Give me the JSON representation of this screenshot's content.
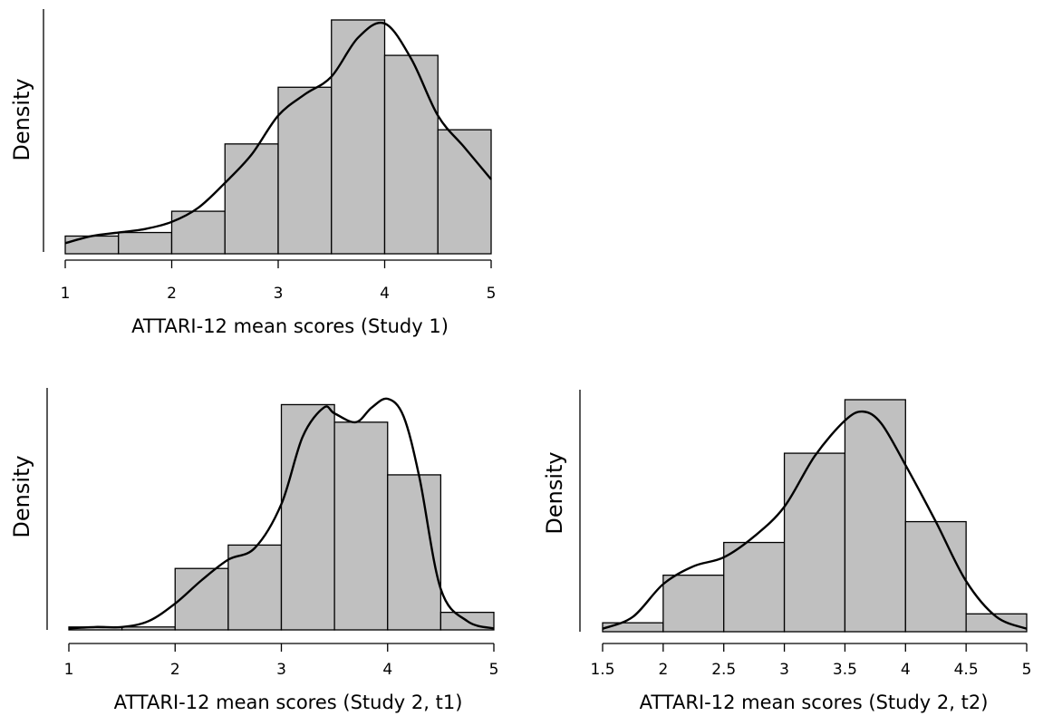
{
  "chart_data": [
    {
      "type": "bar",
      "title": "",
      "xlabel": "ATTARI-12 mean scores (Study 1)",
      "ylabel": "Density",
      "x_ticks": [
        "1",
        "2",
        "3",
        "4",
        "5"
      ],
      "tick_values": [
        1,
        2,
        3,
        4,
        5
      ],
      "xlim": [
        1,
        5
      ],
      "ylim": [
        0,
        0.7
      ],
      "bin_edges": [
        1,
        1.5,
        2,
        2.5,
        3,
        3.5,
        4,
        4.5,
        5
      ],
      "values": [
        0.05,
        0.06,
        0.12,
        0.31,
        0.47,
        0.66,
        0.56,
        0.35
      ],
      "density_x": [
        1.0,
        1.25,
        1.5,
        1.75,
        2.0,
        2.25,
        2.5,
        2.75,
        3.0,
        3.25,
        3.5,
        3.75,
        4.0,
        4.25,
        4.5,
        4.75,
        5.0
      ],
      "density_y": [
        0.03,
        0.05,
        0.06,
        0.07,
        0.09,
        0.13,
        0.2,
        0.28,
        0.39,
        0.45,
        0.5,
        0.61,
        0.65,
        0.55,
        0.39,
        0.3,
        0.21
      ],
      "grid": false
    },
    {
      "type": "bar",
      "title": "",
      "xlabel": "ATTARI-12 mean scores (Study 2, t1)",
      "ylabel": "Density",
      "x_ticks": [
        "1",
        "2",
        "3",
        "4",
        "5"
      ],
      "tick_values": [
        1,
        2,
        3,
        4,
        5
      ],
      "xlim": [
        1,
        5
      ],
      "ylim": [
        0,
        0.85
      ],
      "bin_edges": [
        1,
        1.5,
        2,
        2.5,
        3,
        3.5,
        4,
        4.5,
        5
      ],
      "values": [
        0.01,
        0.01,
        0.21,
        0.29,
        0.77,
        0.71,
        0.53,
        0.06
      ],
      "density_x": [
        1.0,
        1.25,
        1.5,
        1.75,
        2.0,
        2.25,
        2.5,
        2.75,
        3.0,
        3.2,
        3.4,
        3.5,
        3.7,
        3.85,
        4.0,
        4.15,
        4.3,
        4.5,
        4.75,
        5.0
      ],
      "density_y": [
        0.005,
        0.01,
        0.01,
        0.03,
        0.09,
        0.17,
        0.24,
        0.28,
        0.43,
        0.66,
        0.76,
        0.74,
        0.71,
        0.76,
        0.79,
        0.73,
        0.52,
        0.14,
        0.03,
        0.005
      ],
      "grid": false
    },
    {
      "type": "bar",
      "title": "",
      "xlabel": "ATTARI-12 mean scores (Study 2, t2)",
      "ylabel": "Density",
      "x_ticks": [
        "1.5",
        "2",
        "2.5",
        "3",
        "3.5",
        "4",
        "4.5",
        "5"
      ],
      "tick_values": [
        1.5,
        2,
        2.5,
        3,
        3.5,
        4,
        4.5,
        5
      ],
      "xlim": [
        1.5,
        5
      ],
      "ylim": [
        0,
        0.8
      ],
      "bin_edges": [
        1.5,
        2,
        2.5,
        3,
        3.5,
        4,
        4.5,
        5
      ],
      "values": [
        0.03,
        0.19,
        0.3,
        0.6,
        0.78,
        0.37,
        0.06
      ],
      "density_x": [
        1.5,
        1.75,
        2.0,
        2.25,
        2.5,
        2.75,
        3.0,
        3.25,
        3.5,
        3.65,
        3.8,
        4.0,
        4.25,
        4.5,
        4.75,
        5.0
      ],
      "density_y": [
        0.01,
        0.05,
        0.16,
        0.22,
        0.25,
        0.32,
        0.42,
        0.59,
        0.71,
        0.74,
        0.7,
        0.56,
        0.37,
        0.17,
        0.05,
        0.01
      ],
      "grid": false
    }
  ]
}
